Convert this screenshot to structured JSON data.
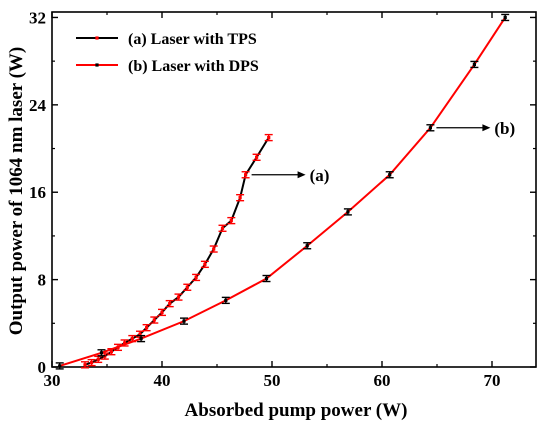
{
  "chart_data": {
    "type": "line",
    "xlabel": "Absorbed pump power (W)",
    "ylabel": "Output power of 1064 nm laser (W)",
    "xlim": [
      30,
      74
    ],
    "ylim": [
      0,
      32.5
    ],
    "xticks": [
      30,
      40,
      50,
      60,
      70
    ],
    "yticks": [
      0,
      8,
      16,
      24,
      32
    ],
    "grid": false,
    "legend_position": "top-left",
    "series": [
      {
        "name": "(a) Laser with TPS",
        "label": "(a)",
        "color": "#000000",
        "marker_color": "#ff0000",
        "x": [
          33.0,
          33.6,
          34.2,
          34.8,
          35.4,
          36.0,
          36.6,
          37.3,
          38.0,
          38.6,
          39.3,
          40.0,
          40.7,
          41.5,
          42.3,
          43.1,
          43.9,
          44.7,
          45.5,
          46.3,
          47.1,
          47.6,
          48.6,
          49.7
        ],
        "y": [
          0.2,
          0.4,
          0.7,
          1.0,
          1.4,
          1.8,
          2.2,
          2.6,
          3.0,
          3.6,
          4.3,
          5.0,
          5.8,
          6.4,
          7.3,
          8.2,
          9.4,
          10.8,
          12.7,
          13.4,
          15.5,
          17.6,
          19.2,
          21.0
        ]
      },
      {
        "name": "(b) Laser with DPS",
        "label": "(b)",
        "color": "#ff0000",
        "marker_color": "#000000",
        "x": [
          30.7,
          34.5,
          38.1,
          42.0,
          45.8,
          49.5,
          53.2,
          56.9,
          60.7,
          64.4,
          68.4,
          71.2
        ],
        "y": [
          0.1,
          1.3,
          2.6,
          4.2,
          6.1,
          8.1,
          11.1,
          14.2,
          17.6,
          21.9,
          27.7,
          32.0
        ]
      }
    ],
    "annotations": [
      {
        "text": "(a)",
        "points_to_series": 0,
        "x": 47.6,
        "y": 17.6
      },
      {
        "text": "(b)",
        "points_to_series": 1,
        "x": 64.4,
        "y": 21.9
      }
    ]
  }
}
